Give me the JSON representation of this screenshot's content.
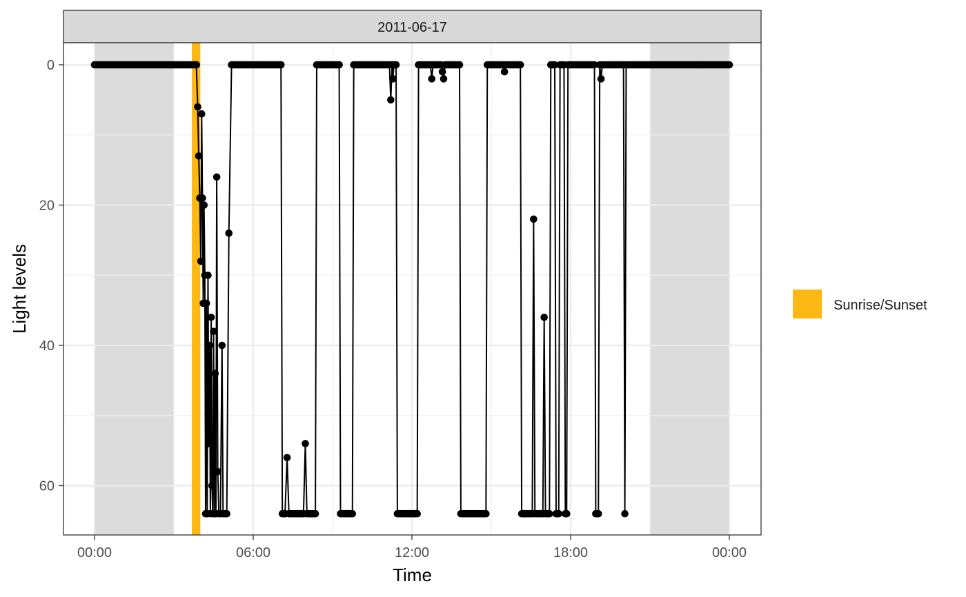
{
  "chart_data": {
    "type": "line",
    "facet_label": "2011-06-17",
    "xlabel": "Time",
    "ylabel": "Light levels",
    "x_domain_hours": [
      0,
      24
    ],
    "y_range": [
      67,
      -3
    ],
    "y_reversed": true,
    "x_ticks": [
      {
        "hour": 0,
        "label": "00:00"
      },
      {
        "hour": 6,
        "label": "06:00"
      },
      {
        "hour": 12,
        "label": "12:00"
      },
      {
        "hour": 18,
        "label": "18:00"
      },
      {
        "hour": 24,
        "label": "00:00"
      }
    ],
    "y_ticks": [
      0,
      20,
      40,
      60
    ],
    "night_shading": [
      {
        "start": 0.0,
        "end": 3.0
      },
      {
        "start": 21.0,
        "end": 24.0
      }
    ],
    "twilight_band": {
      "start": 3.68,
      "end": 4.0,
      "label": "Sunrise/Sunset",
      "color": "#FDB813"
    },
    "legend": {
      "position": "right",
      "entries": [
        {
          "label": "Sunrise/Sunset",
          "color": "#FDB813"
        }
      ]
    },
    "colors": {
      "line": "#000000",
      "night": "#dcdcdc",
      "strip": "#d9d9d9",
      "grid": "#ebebeb"
    },
    "series": [
      {
        "points": [
          [
            0.0,
            0
          ],
          [
            3.85,
            0
          ],
          [
            3.9,
            6
          ],
          [
            3.94,
            13
          ],
          [
            3.98,
            19
          ],
          [
            4.02,
            28
          ],
          [
            4.05,
            7
          ],
          [
            4.08,
            19
          ],
          [
            4.11,
            34
          ],
          [
            4.14,
            20
          ],
          [
            4.17,
            30
          ],
          [
            4.2,
            64
          ],
          [
            4.23,
            34
          ],
          [
            4.26,
            64
          ],
          [
            4.29,
            30
          ],
          [
            4.32,
            54
          ],
          [
            4.35,
            40
          ],
          [
            4.38,
            64
          ],
          [
            4.41,
            36
          ],
          [
            4.44,
            60
          ],
          [
            4.47,
            64
          ],
          [
            4.5,
            38
          ],
          [
            4.53,
            64
          ],
          [
            4.56,
            44
          ],
          [
            4.59,
            64
          ],
          [
            4.62,
            16
          ],
          [
            4.66,
            58
          ],
          [
            4.7,
            64
          ],
          [
            4.76,
            64
          ],
          [
            4.82,
            40
          ],
          [
            4.86,
            64
          ],
          [
            5.0,
            64
          ],
          [
            5.08,
            24
          ],
          [
            5.18,
            0
          ],
          [
            7.05,
            0
          ],
          [
            7.1,
            64
          ],
          [
            7.2,
            64
          ],
          [
            7.28,
            56
          ],
          [
            7.35,
            64
          ],
          [
            7.9,
            64
          ],
          [
            7.97,
            54
          ],
          [
            8.03,
            64
          ],
          [
            8.35,
            64
          ],
          [
            8.4,
            0
          ],
          [
            9.25,
            0
          ],
          [
            9.3,
            64
          ],
          [
            9.75,
            64
          ],
          [
            9.8,
            0
          ],
          [
            11.15,
            0
          ],
          [
            11.2,
            5
          ],
          [
            11.25,
            0
          ],
          [
            11.28,
            2
          ],
          [
            11.32,
            0
          ],
          [
            11.4,
            0
          ],
          [
            11.45,
            64
          ],
          [
            12.2,
            64
          ],
          [
            12.25,
            0
          ],
          [
            12.7,
            0
          ],
          [
            12.75,
            2
          ],
          [
            12.8,
            0
          ],
          [
            13.1,
            0
          ],
          [
            13.15,
            1
          ],
          [
            13.2,
            2
          ],
          [
            13.25,
            0
          ],
          [
            13.8,
            0
          ],
          [
            13.85,
            64
          ],
          [
            14.8,
            64
          ],
          [
            14.85,
            0
          ],
          [
            15.45,
            0
          ],
          [
            15.5,
            1
          ],
          [
            15.55,
            0
          ],
          [
            16.1,
            0
          ],
          [
            16.15,
            64
          ],
          [
            16.55,
            64
          ],
          [
            16.6,
            22
          ],
          [
            16.65,
            64
          ],
          [
            16.95,
            64
          ],
          [
            17.0,
            36
          ],
          [
            17.05,
            64
          ],
          [
            17.2,
            64
          ],
          [
            17.25,
            0
          ],
          [
            17.4,
            0
          ],
          [
            17.45,
            64
          ],
          [
            17.55,
            64
          ],
          [
            17.6,
            0
          ],
          [
            17.75,
            0
          ],
          [
            17.8,
            64
          ],
          [
            17.85,
            64
          ],
          [
            17.9,
            0
          ],
          [
            18.9,
            0
          ],
          [
            18.95,
            64
          ],
          [
            19.05,
            64
          ],
          [
            19.1,
            0
          ],
          [
            19.15,
            2
          ],
          [
            19.2,
            0
          ],
          [
            20.0,
            0
          ],
          [
            20.05,
            64
          ],
          [
            20.1,
            0
          ],
          [
            24.0,
            0
          ]
        ]
      }
    ]
  }
}
